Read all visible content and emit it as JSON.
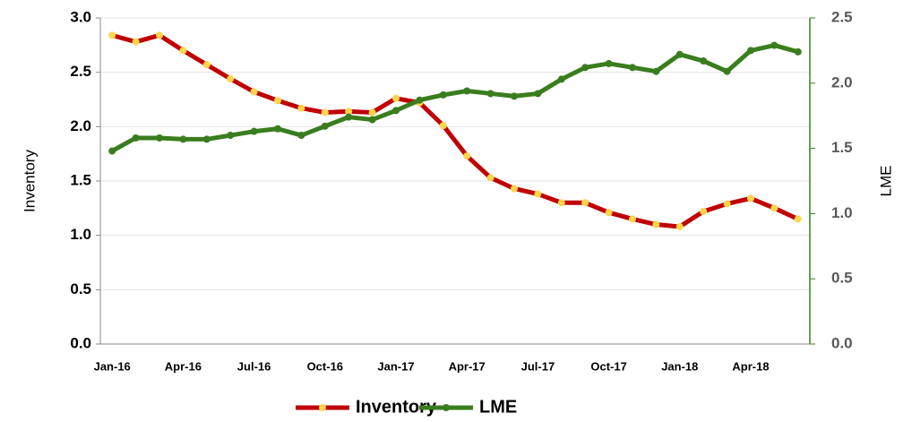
{
  "chart_data": {
    "type": "line",
    "categories": [
      "Jan-16",
      null,
      null,
      "Apr-16",
      null,
      null,
      "Jul-16",
      null,
      null,
      "Oct-16",
      null,
      null,
      "Jan-17",
      null,
      null,
      "Apr-17",
      null,
      null,
      "Jul-17",
      null,
      null,
      "Oct-17",
      null,
      null,
      "Jan-18",
      null,
      null,
      "Apr-18",
      null,
      null
    ],
    "y_label": "Inventory",
    "y2_label": "LME",
    "ylim": [
      0,
      3.0
    ],
    "yticks": [
      {
        "value": 0,
        "label": "0.0"
      },
      0.5,
      {
        "value": 1,
        "label": "1.0"
      },
      1.5,
      {
        "value": 2,
        "label": "2.0"
      },
      2.5,
      {
        "value": 3,
        "label": "3.0"
      }
    ],
    "y2lim": [
      0,
      2.5
    ],
    "y2ticks": [
      {
        "value": 0,
        "label": "0.0"
      },
      0.5,
      {
        "value": 1,
        "label": "1.0"
      },
      1.5,
      {
        "value": 2,
        "label": "2.0"
      },
      2.5
    ],
    "grid": true,
    "legend": "bottom",
    "marker_color": "#ffd54a",
    "series": [
      {
        "name": "Inventory",
        "color": "#c00000",
        "axis": "y",
        "values": [
          2.84,
          2.78,
          2.84,
          2.7,
          2.57,
          2.44,
          2.32,
          2.24,
          2.17,
          2.13,
          2.14,
          2.13,
          2.26,
          2.22,
          2.01,
          1.73,
          1.53,
          1.43,
          1.38,
          1.3,
          1.3,
          1.21,
          1.15,
          1.1,
          1.08,
          1.22,
          1.29,
          1.34,
          1.25,
          1.15
        ]
      },
      {
        "name": "LME",
        "color": "#3a7d1e",
        "axis": "y2",
        "values": [
          1.48,
          1.58,
          1.58,
          1.57,
          1.57,
          1.6,
          1.63,
          1.65,
          1.6,
          1.67,
          1.74,
          1.72,
          1.79,
          1.87,
          1.91,
          1.94,
          1.92,
          1.9,
          1.92,
          2.03,
          2.12,
          2.15,
          2.12,
          2.09,
          2.22,
          2.17,
          2.09,
          2.25,
          2.29,
          2.24
        ]
      }
    ]
  }
}
